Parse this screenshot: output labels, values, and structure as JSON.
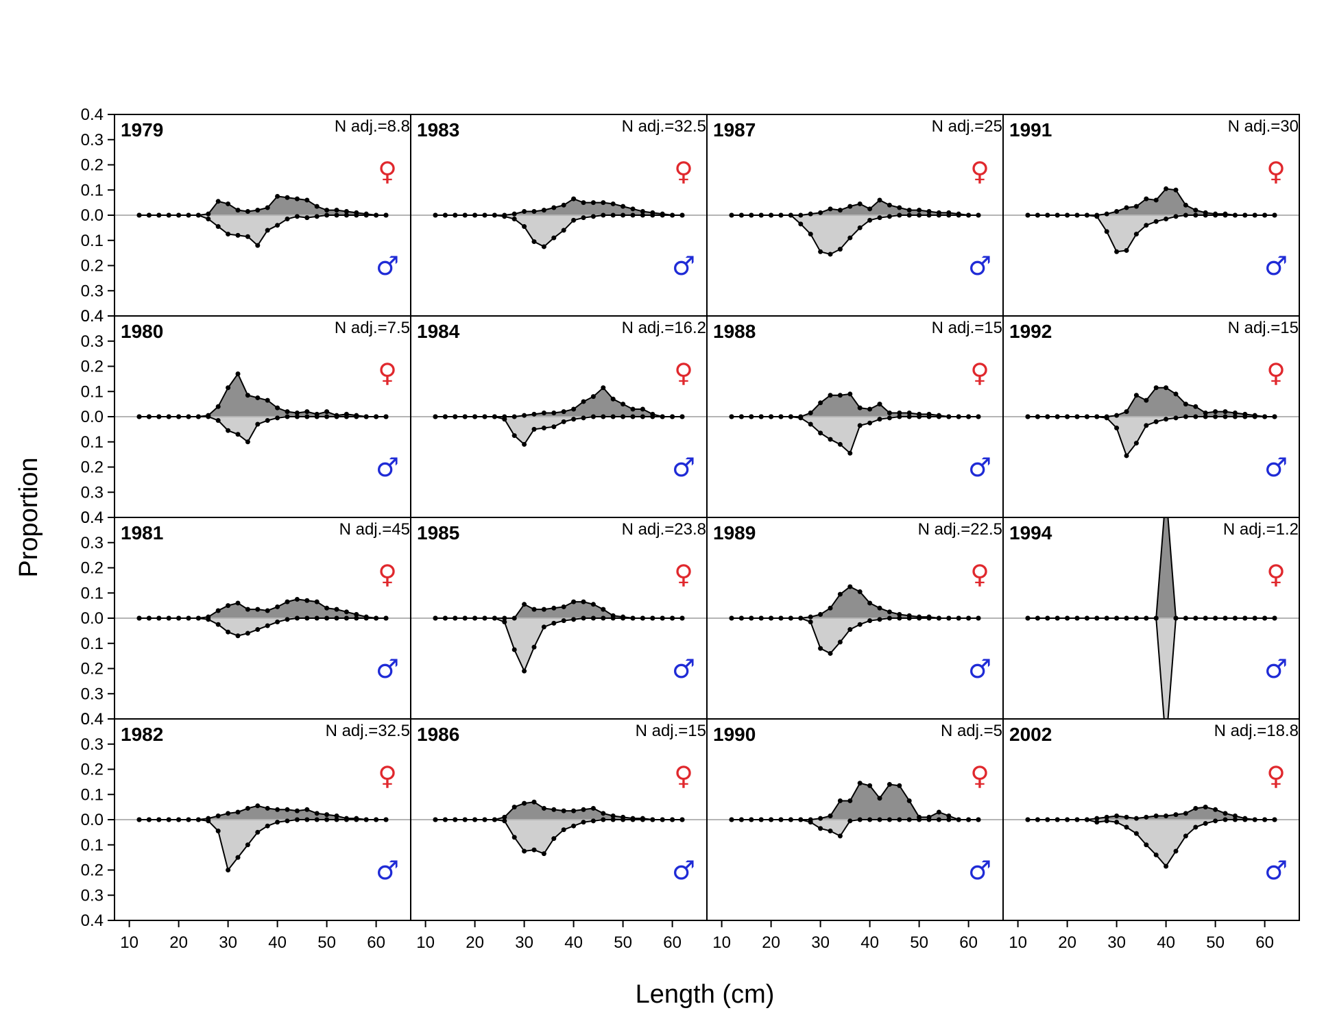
{
  "chart_data": {
    "type": "area",
    "xlabel": "Length (cm)",
    "ylabel": "Proportion",
    "xlim": [
      7,
      67
    ],
    "ylim": [
      -0.4,
      0.4
    ],
    "x_ticks": [
      10,
      20,
      30,
      40,
      50,
      60
    ],
    "y_ticks": [
      "0.4",
      "0.3",
      "0.2",
      "0.1",
      "0.0",
      "0.1",
      "0.2",
      "0.3",
      "0.4"
    ],
    "layout": {
      "columns": 4,
      "rows": 4,
      "order": "column-major"
    },
    "female_symbol": "♀",
    "male_symbol": "♂",
    "colors": {
      "female_fill": "#8f8f8f",
      "male_fill": "#cfcfcf",
      "female_symbol": "#e0282d",
      "male_symbol": "#1f2bd6",
      "zero_line": "#b4b4b4"
    },
    "length_bins": [
      12,
      14,
      16,
      18,
      20,
      22,
      24,
      26,
      28,
      30,
      32,
      34,
      36,
      38,
      40,
      42,
      44,
      46,
      48,
      50,
      52,
      54,
      56,
      58,
      60,
      62
    ],
    "panels": [
      {
        "year": "1979",
        "nadj": "N adj.=8.8",
        "female": [
          0,
          0,
          0,
          0,
          0,
          0,
          0,
          0.005,
          0.055,
          0.045,
          0.02,
          0.015,
          0.02,
          0.03,
          0.075,
          0.07,
          0.065,
          0.06,
          0.035,
          0.02,
          0.02,
          0.015,
          0.01,
          0.005,
          0,
          0
        ],
        "male": [
          0,
          0,
          0,
          0,
          0,
          0,
          0,
          0.015,
          0.045,
          0.075,
          0.08,
          0.085,
          0.12,
          0.06,
          0.04,
          0.015,
          0.005,
          0.01,
          0.005,
          0,
          0,
          0,
          0,
          0,
          0,
          0
        ]
      },
      {
        "year": "1980",
        "nadj": "N adj.=7.5",
        "female": [
          0,
          0,
          0,
          0,
          0,
          0,
          0,
          0.005,
          0.04,
          0.115,
          0.17,
          0.085,
          0.075,
          0.065,
          0.035,
          0.02,
          0.015,
          0.02,
          0.01,
          0.02,
          0.005,
          0.01,
          0.005,
          0,
          0,
          0
        ],
        "male": [
          0,
          0,
          0,
          0,
          0,
          0,
          0,
          0,
          0.015,
          0.055,
          0.07,
          0.1,
          0.03,
          0.015,
          0.005,
          0,
          0,
          0,
          0,
          0,
          0,
          0,
          0,
          0,
          0,
          0
        ]
      },
      {
        "year": "1981",
        "nadj": "N adj.=45",
        "female": [
          0,
          0,
          0,
          0,
          0,
          0,
          0,
          0.005,
          0.03,
          0.05,
          0.06,
          0.035,
          0.035,
          0.03,
          0.045,
          0.065,
          0.075,
          0.07,
          0.065,
          0.04,
          0.035,
          0.025,
          0.015,
          0.005,
          0,
          0
        ],
        "male": [
          0,
          0,
          0,
          0,
          0,
          0,
          0,
          0.005,
          0.025,
          0.055,
          0.07,
          0.06,
          0.045,
          0.03,
          0.015,
          0.005,
          0,
          0,
          0,
          0,
          0,
          0,
          0,
          0,
          0,
          0
        ]
      },
      {
        "year": "1982",
        "nadj": "N adj.=32.5",
        "female": [
          0,
          0,
          0,
          0,
          0,
          0,
          0,
          0.005,
          0.015,
          0.025,
          0.03,
          0.045,
          0.055,
          0.045,
          0.04,
          0.04,
          0.035,
          0.04,
          0.025,
          0.02,
          0.015,
          0.005,
          0.005,
          0,
          0,
          0
        ],
        "male": [
          0,
          0,
          0,
          0,
          0,
          0,
          0,
          0.005,
          0.045,
          0.2,
          0.15,
          0.1,
          0.05,
          0.025,
          0.01,
          0.005,
          0,
          0,
          0,
          0,
          0,
          0,
          0,
          0,
          0,
          0
        ]
      },
      {
        "year": "1983",
        "nadj": "N adj.=32.5",
        "female": [
          0,
          0,
          0,
          0,
          0,
          0,
          0,
          0,
          0.005,
          0.015,
          0.015,
          0.02,
          0.03,
          0.04,
          0.065,
          0.05,
          0.05,
          0.05,
          0.045,
          0.035,
          0.025,
          0.015,
          0.01,
          0.005,
          0,
          0
        ],
        "male": [
          0,
          0,
          0,
          0,
          0,
          0,
          0,
          0.005,
          0.015,
          0.045,
          0.105,
          0.125,
          0.09,
          0.06,
          0.02,
          0.01,
          0.005,
          0,
          0,
          0,
          0,
          0,
          0,
          0,
          0,
          0
        ]
      },
      {
        "year": "1984",
        "nadj": "N adj.=16.2",
        "female": [
          0,
          0,
          0,
          0,
          0,
          0,
          0,
          0,
          0,
          0.005,
          0.01,
          0.015,
          0.015,
          0.02,
          0.03,
          0.06,
          0.08,
          0.115,
          0.07,
          0.05,
          0.03,
          0.03,
          0.01,
          0,
          0,
          0
        ],
        "male": [
          0,
          0,
          0,
          0,
          0,
          0,
          0,
          0.01,
          0.075,
          0.11,
          0.05,
          0.045,
          0.04,
          0.02,
          0.01,
          0.005,
          0,
          0,
          0,
          0,
          0,
          0,
          0,
          0,
          0,
          0
        ]
      },
      {
        "year": "1985",
        "nadj": "N adj.=23.8",
        "female": [
          0,
          0,
          0,
          0,
          0,
          0,
          0,
          0,
          0,
          0.055,
          0.035,
          0.035,
          0.04,
          0.045,
          0.065,
          0.065,
          0.055,
          0.035,
          0.01,
          0.005,
          0,
          0,
          0,
          0,
          0,
          0
        ],
        "male": [
          0,
          0,
          0,
          0,
          0,
          0,
          0,
          0.015,
          0.125,
          0.21,
          0.115,
          0.035,
          0.02,
          0.01,
          0.005,
          0,
          0,
          0,
          0,
          0,
          0,
          0,
          0,
          0,
          0,
          0
        ]
      },
      {
        "year": "1986",
        "nadj": "N adj.=15",
        "female": [
          0,
          0,
          0,
          0,
          0,
          0,
          0,
          0.01,
          0.05,
          0.065,
          0.07,
          0.045,
          0.04,
          0.035,
          0.035,
          0.04,
          0.045,
          0.025,
          0.015,
          0.01,
          0.005,
          0.005,
          0,
          0,
          0,
          0
        ],
        "male": [
          0,
          0,
          0,
          0,
          0,
          0,
          0,
          0.005,
          0.07,
          0.125,
          0.12,
          0.135,
          0.075,
          0.04,
          0.025,
          0.01,
          0.005,
          0,
          0,
          0,
          0,
          0,
          0,
          0,
          0,
          0
        ]
      },
      {
        "year": "1987",
        "nadj": "N adj.=25",
        "female": [
          0,
          0,
          0,
          0,
          0,
          0,
          0,
          0,
          0.005,
          0.01,
          0.025,
          0.02,
          0.035,
          0.045,
          0.025,
          0.06,
          0.04,
          0.03,
          0.02,
          0.02,
          0.015,
          0.01,
          0.01,
          0.005,
          0,
          0
        ],
        "male": [
          0,
          0,
          0,
          0,
          0,
          0,
          0,
          0.035,
          0.075,
          0.145,
          0.155,
          0.135,
          0.09,
          0.05,
          0.02,
          0.01,
          0.005,
          0,
          0,
          0,
          0,
          0,
          0,
          0,
          0,
          0
        ]
      },
      {
        "year": "1988",
        "nadj": "N adj.=15",
        "female": [
          0,
          0,
          0,
          0,
          0,
          0,
          0,
          0,
          0.015,
          0.055,
          0.085,
          0.085,
          0.09,
          0.035,
          0.03,
          0.05,
          0.015,
          0.015,
          0.015,
          0.01,
          0.01,
          0.005,
          0,
          0,
          0,
          0
        ],
        "male": [
          0,
          0,
          0,
          0,
          0,
          0,
          0,
          0.005,
          0.03,
          0.065,
          0.09,
          0.11,
          0.145,
          0.035,
          0.025,
          0.01,
          0.005,
          0,
          0,
          0,
          0,
          0,
          0,
          0,
          0,
          0
        ]
      },
      {
        "year": "1989",
        "nadj": "N adj.=22.5",
        "female": [
          0,
          0,
          0,
          0,
          0,
          0,
          0,
          0,
          0.005,
          0.015,
          0.04,
          0.095,
          0.125,
          0.105,
          0.06,
          0.04,
          0.025,
          0.015,
          0.01,
          0.005,
          0.005,
          0,
          0,
          0,
          0,
          0
        ],
        "male": [
          0,
          0,
          0,
          0,
          0,
          0,
          0,
          0,
          0.015,
          0.12,
          0.14,
          0.095,
          0.045,
          0.025,
          0.01,
          0.005,
          0,
          0,
          0,
          0,
          0,
          0,
          0,
          0,
          0,
          0
        ]
      },
      {
        "year": "1990",
        "nadj": "N adj.=5",
        "female": [
          0,
          0,
          0,
          0,
          0,
          0,
          0,
          0,
          0,
          0.005,
          0.015,
          0.075,
          0.075,
          0.145,
          0.135,
          0.085,
          0.14,
          0.135,
          0.075,
          0.01,
          0.01,
          0.03,
          0.015,
          0,
          0,
          0
        ],
        "male": [
          0,
          0,
          0,
          0,
          0,
          0,
          0,
          0,
          0.01,
          0.035,
          0.045,
          0.065,
          0.005,
          0,
          0,
          0,
          0,
          0,
          0,
          0,
          0,
          0,
          0,
          0,
          0,
          0
        ]
      },
      {
        "year": "1991",
        "nadj": "N adj.=30",
        "female": [
          0,
          0,
          0,
          0,
          0,
          0,
          0,
          0,
          0.005,
          0.015,
          0.03,
          0.035,
          0.065,
          0.06,
          0.105,
          0.1,
          0.04,
          0.02,
          0.01,
          0.005,
          0.005,
          0,
          0,
          0,
          0,
          0
        ],
        "male": [
          0,
          0,
          0,
          0,
          0,
          0,
          0,
          0.005,
          0.065,
          0.145,
          0.14,
          0.075,
          0.04,
          0.025,
          0.015,
          0.005,
          0,
          0,
          0,
          0,
          0,
          0,
          0,
          0,
          0,
          0
        ]
      },
      {
        "year": "1992",
        "nadj": "N adj.=15",
        "female": [
          0,
          0,
          0,
          0,
          0,
          0,
          0,
          0,
          0,
          0.005,
          0.02,
          0.085,
          0.065,
          0.115,
          0.115,
          0.09,
          0.05,
          0.04,
          0.015,
          0.02,
          0.02,
          0.015,
          0.01,
          0.005,
          0,
          0
        ],
        "male": [
          0,
          0,
          0,
          0,
          0,
          0,
          0,
          0,
          0.005,
          0.045,
          0.155,
          0.105,
          0.035,
          0.02,
          0.01,
          0.005,
          0,
          0,
          0,
          0,
          0,
          0,
          0,
          0,
          0,
          0
        ]
      },
      {
        "year": "1994",
        "nadj": "N adj.=1.2",
        "female": [
          0,
          0,
          0,
          0,
          0,
          0,
          0,
          0,
          0,
          0,
          0,
          0,
          0,
          0,
          0.5,
          0,
          0,
          0,
          0,
          0,
          0,
          0,
          0,
          0,
          0,
          0
        ],
        "male": [
          0,
          0,
          0,
          0,
          0,
          0,
          0,
          0,
          0,
          0,
          0,
          0,
          0,
          0,
          0.5,
          0,
          0,
          0,
          0,
          0,
          0,
          0,
          0,
          0,
          0,
          0
        ]
      },
      {
        "year": "2002",
        "nadj": "N adj.=18.8",
        "female": [
          0,
          0,
          0,
          0,
          0,
          0,
          0,
          0.005,
          0.01,
          0.015,
          0.01,
          0.005,
          0.01,
          0.015,
          0.015,
          0.02,
          0.025,
          0.045,
          0.05,
          0.04,
          0.025,
          0.015,
          0.005,
          0,
          0,
          0
        ],
        "male": [
          0,
          0,
          0,
          0,
          0,
          0,
          0,
          0.01,
          0.005,
          0.01,
          0.03,
          0.055,
          0.1,
          0.14,
          0.185,
          0.125,
          0.065,
          0.03,
          0.015,
          0.005,
          0,
          0,
          0,
          0,
          0,
          0
        ]
      }
    ]
  }
}
